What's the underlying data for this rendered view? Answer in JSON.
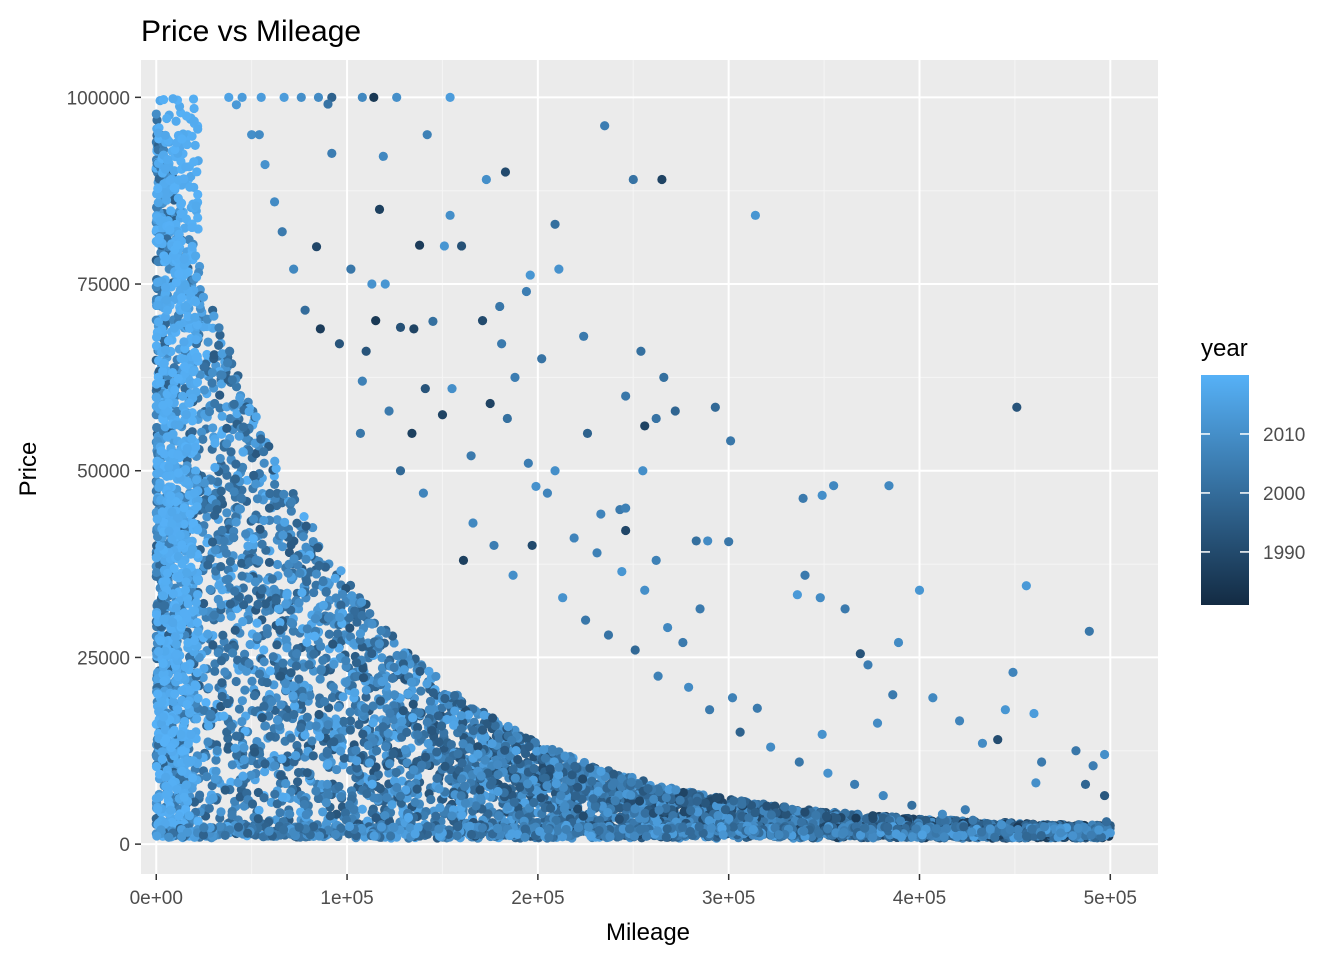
{
  "chart_data": {
    "type": "scatter",
    "title": "Price vs Mileage",
    "xlabel": "Mileage",
    "ylabel": "Price",
    "xlim": [
      -8000,
      525000
    ],
    "ylim": [
      -4000,
      105000
    ],
    "xticks": [
      0,
      100000,
      200000,
      300000,
      400000,
      500000
    ],
    "xtick_labels": [
      "0e+00",
      "1e+05",
      "2e+05",
      "3e+05",
      "4e+05",
      "5e+05"
    ],
    "yticks": [
      0,
      25000,
      50000,
      75000,
      100000
    ],
    "ytick_labels": [
      "0",
      "25000",
      "50000",
      "75000",
      "100000"
    ],
    "grid": true,
    "colors": {
      "panel_background": "#ebebeb",
      "grid_major": "#ffffff",
      "low_year": "#132b43",
      "high_year": "#56b1f7"
    },
    "legend": {
      "title": "year",
      "position": "right",
      "type": "continuous-colorbar",
      "range": [
        1981,
        2020
      ],
      "ticks": [
        1990,
        2000,
        2010
      ],
      "tick_labels": [
        "1990",
        "2000",
        "2010"
      ]
    },
    "series": [
      {
        "color_by": "year",
        "points": [
          [
            235000,
            96200,
            2005
          ],
          [
            183000,
            90000,
            1990
          ],
          [
            250000,
            89000,
            2002
          ],
          [
            265000,
            89000,
            1988
          ],
          [
            173000,
            89000,
            2010
          ],
          [
            314000,
            84200,
            2012
          ],
          [
            117000,
            85000,
            1987
          ],
          [
            209000,
            83000,
            2001
          ],
          [
            154000,
            84200,
            2010
          ],
          [
            211000,
            77000,
            2011
          ],
          [
            196000,
            76200,
            2012
          ],
          [
            160000,
            80100,
            1992
          ],
          [
            138000,
            80200,
            1986
          ],
          [
            151000,
            80100,
            2012
          ],
          [
            180000,
            72000,
            2003
          ],
          [
            194000,
            74000,
            2005
          ],
          [
            171000,
            70100,
            1990
          ],
          [
            145000,
            70000,
            2001
          ],
          [
            128000,
            69200,
            1992
          ],
          [
            115000,
            70100,
            1985
          ],
          [
            135000,
            69000,
            1988
          ],
          [
            110000,
            66000,
            1993
          ],
          [
            202000,
            65000,
            2002
          ],
          [
            181000,
            67000,
            2004
          ],
          [
            224000,
            68000,
            2004
          ],
          [
            254000,
            66000,
            2001
          ],
          [
            266000,
            62500,
            2001
          ],
          [
            188000,
            62500,
            2005
          ],
          [
            293000,
            58500,
            1999
          ],
          [
            246000,
            60000,
            2003
          ],
          [
            301000,
            54000,
            2003
          ],
          [
            262000,
            57000,
            2002
          ],
          [
            256000,
            56000,
            1988
          ],
          [
            272000,
            58000,
            1998
          ],
          [
            226000,
            55000,
            1997
          ],
          [
            209000,
            50000,
            2010
          ],
          [
            195000,
            51000,
            2005
          ],
          [
            175000,
            59000,
            1988
          ],
          [
            184000,
            57000,
            2001
          ],
          [
            165000,
            52000,
            2004
          ],
          [
            451000,
            58500,
            1993
          ],
          [
            384000,
            48000,
            2008
          ],
          [
            339000,
            46300,
            2004
          ],
          [
            349000,
            46700,
            2010
          ],
          [
            355000,
            48000,
            2008
          ],
          [
            255000,
            50000,
            2010
          ],
          [
            262000,
            38000,
            2006
          ],
          [
            300000,
            40500,
            2003
          ],
          [
            283000,
            40600,
            2001
          ],
          [
            289000,
            40600,
            2009
          ],
          [
            246000,
            42000,
            1989
          ],
          [
            243000,
            44800,
            2004
          ],
          [
            233000,
            44200,
            2007
          ],
          [
            246000,
            45000,
            2006
          ],
          [
            199000,
            47900,
            2011
          ],
          [
            205000,
            47000,
            2007
          ],
          [
            400000,
            34000,
            2012
          ],
          [
            456000,
            34600,
            2013
          ],
          [
            340000,
            36000,
            2004
          ],
          [
            336000,
            33400,
            2013
          ],
          [
            348000,
            33000,
            2009
          ],
          [
            361000,
            31500,
            2004
          ],
          [
            389000,
            27000,
            2009
          ],
          [
            489000,
            28500,
            2003
          ],
          [
            369000,
            25500,
            1993
          ],
          [
            373000,
            24000,
            2005
          ],
          [
            386000,
            20000,
            2004
          ],
          [
            407000,
            19600,
            2008
          ],
          [
            449000,
            23000,
            2007
          ],
          [
            460000,
            17500,
            2014
          ],
          [
            445000,
            18000,
            2012
          ],
          [
            421000,
            16500,
            2007
          ],
          [
            433000,
            13500,
            2009
          ],
          [
            441000,
            14000,
            1991
          ],
          [
            464000,
            11000,
            2004
          ],
          [
            491000,
            10500,
            2005
          ],
          [
            497000,
            12000,
            2010
          ],
          [
            482000,
            12500,
            2003
          ],
          [
            487000,
            8000,
            1998
          ],
          [
            497000,
            6500,
            1994
          ],
          [
            498000,
            3000,
            2000
          ],
          [
            494000,
            1900,
            2012
          ],
          [
            424000,
            4600,
            2005
          ],
          [
            461000,
            8200,
            2010
          ],
          [
            378000,
            16200,
            2009
          ],
          [
            349000,
            14700,
            2011
          ],
          [
            315000,
            18200,
            2004
          ],
          [
            302000,
            19600,
            2006
          ],
          [
            285000,
            31500,
            2004
          ],
          [
            268000,
            29000,
            2008
          ],
          [
            276000,
            27000,
            2004
          ],
          [
            256000,
            34000,
            2010
          ],
          [
            244000,
            36500,
            2012
          ],
          [
            231000,
            39000,
            2006
          ],
          [
            219000,
            41000,
            2007
          ],
          [
            197000,
            40000,
            1990
          ],
          [
            150000,
            57500,
            1988
          ],
          [
            122000,
            58000,
            2004
          ],
          [
            108000,
            62000,
            2006
          ],
          [
            96000,
            67000,
            1993
          ],
          [
            86000,
            69000,
            1986
          ],
          [
            78000,
            71500,
            2000
          ],
          [
            72000,
            77000,
            2008
          ],
          [
            66000,
            82000,
            2004
          ],
          [
            62000,
            86000,
            2009
          ],
          [
            57000,
            91000,
            2011
          ],
          [
            50000,
            95000,
            2010
          ],
          [
            42000,
            99000,
            2013
          ],
          [
            126000,
            100000,
            2010
          ],
          [
            154000,
            100000,
            2014
          ],
          [
            114000,
            100000,
            1985
          ],
          [
            108000,
            100000,
            2008
          ],
          [
            92000,
            100000,
            1997
          ],
          [
            90000,
            99100,
            2002
          ],
          [
            76000,
            100000,
            2010
          ],
          [
            85000,
            100000,
            2009
          ],
          [
            55000,
            100000,
            2014
          ],
          [
            67000,
            100000,
            2014
          ],
          [
            38000,
            100000,
            2016
          ],
          [
            45000,
            100000,
            2014
          ],
          [
            119000,
            92100,
            2008
          ],
          [
            92000,
            92500,
            2005
          ],
          [
            142000,
            95000,
            2006
          ],
          [
            54000,
            95000,
            2009
          ],
          [
            102000,
            77000,
            2003
          ],
          [
            84000,
            80000,
            1989
          ],
          [
            113000,
            75000,
            2011
          ],
          [
            120000,
            75000,
            2012
          ],
          [
            155000,
            61000,
            2010
          ],
          [
            141000,
            61000,
            1993
          ],
          [
            134000,
            55000,
            1987
          ],
          [
            107000,
            55000,
            2003
          ],
          [
            128000,
            50000,
            1999
          ],
          [
            140000,
            47000,
            2007
          ],
          [
            166000,
            43000,
            2008
          ],
          [
            177000,
            40000,
            2005
          ],
          [
            161000,
            38000,
            1987
          ],
          [
            187000,
            36000,
            2010
          ],
          [
            213000,
            33000,
            2011
          ],
          [
            225000,
            30000,
            2003
          ],
          [
            237000,
            28000,
            2002
          ],
          [
            251000,
            26000,
            1999
          ],
          [
            263000,
            22500,
            2006
          ],
          [
            279000,
            21000,
            2009
          ],
          [
            290000,
            18000,
            2004
          ],
          [
            306000,
            15000,
            1997
          ],
          [
            322000,
            13000,
            2009
          ],
          [
            337000,
            11000,
            2003
          ],
          [
            352000,
            9500,
            2011
          ],
          [
            366000,
            8000,
            2005
          ],
          [
            381000,
            6500,
            2008
          ],
          [
            396000,
            5200,
            2001
          ],
          [
            412000,
            4000,
            2009
          ],
          [
            428000,
            3200,
            2004
          ],
          [
            443000,
            2600,
            2011
          ],
          [
            459000,
            2000,
            2002
          ],
          [
            474000,
            1500,
            2009
          ],
          [
            490000,
            1200,
            2005
          ],
          [
            500000,
            1500,
            2013
          ]
        ]
      }
    ]
  }
}
